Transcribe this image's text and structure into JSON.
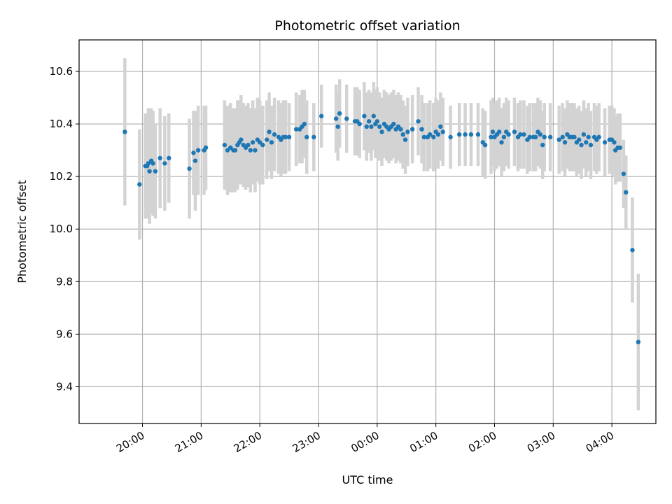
{
  "chart_data": {
    "type": "scatter",
    "title": "Photometric offset variation",
    "xlabel": "UTC time",
    "ylabel": "Photometric offset",
    "xlim_hours": [
      18.92,
      28.75
    ],
    "ylim": [
      9.26,
      10.72
    ],
    "grid": true,
    "x_ticks": [
      {
        "h": 20,
        "label": "20:00"
      },
      {
        "h": 21,
        "label": "21:00"
      },
      {
        "h": 22,
        "label": "22:00"
      },
      {
        "h": 23,
        "label": "23:00"
      },
      {
        "h": 24,
        "label": "00:00"
      },
      {
        "h": 25,
        "label": "01:00"
      },
      {
        "h": 26,
        "label": "02:00"
      },
      {
        "h": 27,
        "label": "03:00"
      },
      {
        "h": 28,
        "label": "04:00"
      }
    ],
    "y_ticks": [
      {
        "v": 9.4,
        "label": "9.4"
      },
      {
        "v": 9.6,
        "label": "9.6"
      },
      {
        "v": 9.8,
        "label": "9.8"
      },
      {
        "v": 10.0,
        "label": "10.0"
      },
      {
        "v": 10.2,
        "label": "10.2"
      },
      {
        "v": 10.4,
        "label": "10.4"
      },
      {
        "v": 10.6,
        "label": "10.6"
      }
    ],
    "marker_color": "#1f77b4",
    "errorbar_color": "#d3d3d3",
    "series": [
      {
        "points": [
          [
            19.7,
            10.37,
            0.28
          ],
          [
            19.95,
            10.17,
            0.21
          ],
          [
            20.05,
            10.24,
            0.2
          ],
          [
            20.08,
            10.24,
            0.2
          ],
          [
            20.1,
            10.25,
            0.21
          ],
          [
            20.12,
            10.22,
            0.2
          ],
          [
            20.15,
            10.26,
            0.2
          ],
          [
            20.18,
            10.25,
            0.2
          ],
          [
            20.22,
            10.22,
            0.18
          ],
          [
            20.3,
            10.27,
            0.19
          ],
          [
            20.38,
            10.25,
            0.18
          ],
          [
            20.45,
            10.27,
            0.17
          ],
          [
            20.8,
            10.23,
            0.19
          ],
          [
            20.87,
            10.29,
            0.16
          ],
          [
            20.9,
            10.26,
            0.19
          ],
          [
            20.95,
            10.3,
            0.17
          ],
          [
            21.05,
            10.3,
            0.17
          ],
          [
            21.08,
            10.31,
            0.16
          ],
          [
            21.4,
            10.32,
            0.17
          ],
          [
            21.45,
            10.3,
            0.17
          ],
          [
            21.5,
            10.31,
            0.17
          ],
          [
            21.55,
            10.3,
            0.16
          ],
          [
            21.58,
            10.3,
            0.16
          ],
          [
            21.62,
            10.32,
            0.17
          ],
          [
            21.65,
            10.33,
            0.16
          ],
          [
            21.68,
            10.34,
            0.17
          ],
          [
            21.72,
            10.32,
            0.16
          ],
          [
            21.76,
            10.31,
            0.16
          ],
          [
            21.8,
            10.32,
            0.16
          ],
          [
            21.84,
            10.3,
            0.16
          ],
          [
            21.88,
            10.33,
            0.16
          ],
          [
            21.92,
            10.3,
            0.16
          ],
          [
            21.96,
            10.34,
            0.16
          ],
          [
            22.0,
            10.33,
            0.16
          ],
          [
            22.05,
            10.32,
            0.15
          ],
          [
            22.12,
            10.34,
            0.15
          ],
          [
            22.16,
            10.37,
            0.15
          ],
          [
            22.2,
            10.33,
            0.14
          ],
          [
            22.25,
            10.36,
            0.14
          ],
          [
            22.32,
            10.35,
            0.14
          ],
          [
            22.36,
            10.34,
            0.14
          ],
          [
            22.4,
            10.35,
            0.14
          ],
          [
            22.44,
            10.35,
            0.14
          ],
          [
            22.5,
            10.35,
            0.13
          ],
          [
            22.62,
            10.38,
            0.14
          ],
          [
            22.68,
            10.38,
            0.13
          ],
          [
            22.72,
            10.39,
            0.14
          ],
          [
            22.76,
            10.4,
            0.13
          ],
          [
            22.8,
            10.35,
            0.14
          ],
          [
            22.92,
            10.35,
            0.13
          ],
          [
            23.05,
            10.43,
            0.12
          ],
          [
            23.3,
            10.42,
            0.13
          ],
          [
            23.33,
            10.39,
            0.13
          ],
          [
            23.36,
            10.44,
            0.13
          ],
          [
            23.48,
            10.42,
            0.13
          ],
          [
            23.62,
            10.41,
            0.13
          ],
          [
            23.66,
            10.41,
            0.13
          ],
          [
            23.7,
            10.4,
            0.13
          ],
          [
            23.78,
            10.43,
            0.13
          ],
          [
            23.82,
            10.39,
            0.13
          ],
          [
            23.86,
            10.41,
            0.12
          ],
          [
            23.9,
            10.39,
            0.13
          ],
          [
            23.94,
            10.43,
            0.13
          ],
          [
            23.97,
            10.4,
            0.13
          ],
          [
            24.0,
            10.41,
            0.13
          ],
          [
            24.04,
            10.39,
            0.13
          ],
          [
            24.08,
            10.37,
            0.13
          ],
          [
            24.12,
            10.4,
            0.13
          ],
          [
            24.16,
            10.39,
            0.13
          ],
          [
            24.2,
            10.38,
            0.13
          ],
          [
            24.24,
            10.39,
            0.13
          ],
          [
            24.28,
            10.4,
            0.13
          ],
          [
            24.32,
            10.38,
            0.13
          ],
          [
            24.36,
            10.39,
            0.13
          ],
          [
            24.4,
            10.38,
            0.13
          ],
          [
            24.44,
            10.36,
            0.13
          ],
          [
            24.48,
            10.34,
            0.13
          ],
          [
            24.52,
            10.37,
            0.13
          ],
          [
            24.6,
            10.38,
            0.13
          ],
          [
            24.7,
            10.41,
            0.13
          ],
          [
            24.76,
            10.38,
            0.13
          ],
          [
            24.8,
            10.35,
            0.13
          ],
          [
            24.86,
            10.35,
            0.13
          ],
          [
            24.9,
            10.36,
            0.13
          ],
          [
            24.96,
            10.35,
            0.13
          ],
          [
            25.0,
            10.37,
            0.13
          ],
          [
            25.04,
            10.36,
            0.13
          ],
          [
            25.08,
            10.39,
            0.13
          ],
          [
            25.12,
            10.37,
            0.13
          ],
          [
            25.25,
            10.35,
            0.12
          ],
          [
            25.4,
            10.36,
            0.12
          ],
          [
            25.5,
            10.36,
            0.12
          ],
          [
            25.6,
            10.36,
            0.12
          ],
          [
            25.72,
            10.36,
            0.12
          ],
          [
            25.8,
            10.33,
            0.13
          ],
          [
            25.84,
            10.32,
            0.13
          ],
          [
            25.94,
            10.35,
            0.14
          ],
          [
            25.97,
            10.37,
            0.13
          ],
          [
            26.0,
            10.35,
            0.13
          ],
          [
            26.04,
            10.36,
            0.13
          ],
          [
            26.08,
            10.37,
            0.13
          ],
          [
            26.12,
            10.33,
            0.13
          ],
          [
            26.16,
            10.35,
            0.13
          ],
          [
            26.2,
            10.37,
            0.13
          ],
          [
            26.24,
            10.36,
            0.13
          ],
          [
            26.34,
            10.37,
            0.13
          ],
          [
            26.4,
            10.35,
            0.13
          ],
          [
            26.44,
            10.36,
            0.13
          ],
          [
            26.5,
            10.36,
            0.13
          ],
          [
            26.56,
            10.34,
            0.13
          ],
          [
            26.6,
            10.35,
            0.13
          ],
          [
            26.66,
            10.35,
            0.13
          ],
          [
            26.7,
            10.35,
            0.13
          ],
          [
            26.74,
            10.37,
            0.13
          ],
          [
            26.78,
            10.36,
            0.13
          ],
          [
            26.82,
            10.32,
            0.13
          ],
          [
            26.85,
            10.35,
            0.13
          ],
          [
            26.95,
            10.35,
            0.13
          ],
          [
            27.1,
            10.34,
            0.13
          ],
          [
            27.16,
            10.35,
            0.13
          ],
          [
            27.2,
            10.33,
            0.13
          ],
          [
            27.24,
            10.36,
            0.13
          ],
          [
            27.28,
            10.35,
            0.13
          ],
          [
            27.32,
            10.35,
            0.13
          ],
          [
            27.36,
            10.35,
            0.13
          ],
          [
            27.4,
            10.33,
            0.13
          ],
          [
            27.44,
            10.34,
            0.13
          ],
          [
            27.48,
            10.32,
            0.13
          ],
          [
            27.52,
            10.36,
            0.13
          ],
          [
            27.56,
            10.33,
            0.13
          ],
          [
            27.6,
            10.35,
            0.13
          ],
          [
            27.64,
            10.32,
            0.13
          ],
          [
            27.7,
            10.35,
            0.13
          ],
          [
            27.74,
            10.34,
            0.13
          ],
          [
            27.78,
            10.35,
            0.13
          ],
          [
            27.88,
            10.33,
            0.13
          ],
          [
            27.96,
            10.34,
            0.13
          ],
          [
            28.0,
            10.34,
            0.13
          ],
          [
            28.04,
            10.33,
            0.13
          ],
          [
            28.06,
            10.3,
            0.13
          ],
          [
            28.1,
            10.31,
            0.13
          ],
          [
            28.14,
            10.31,
            0.13
          ],
          [
            28.2,
            10.21,
            0.13
          ],
          [
            28.24,
            10.14,
            0.14
          ],
          [
            28.35,
            9.92,
            0.2
          ],
          [
            28.45,
            9.57,
            0.26
          ]
        ]
      }
    ]
  }
}
